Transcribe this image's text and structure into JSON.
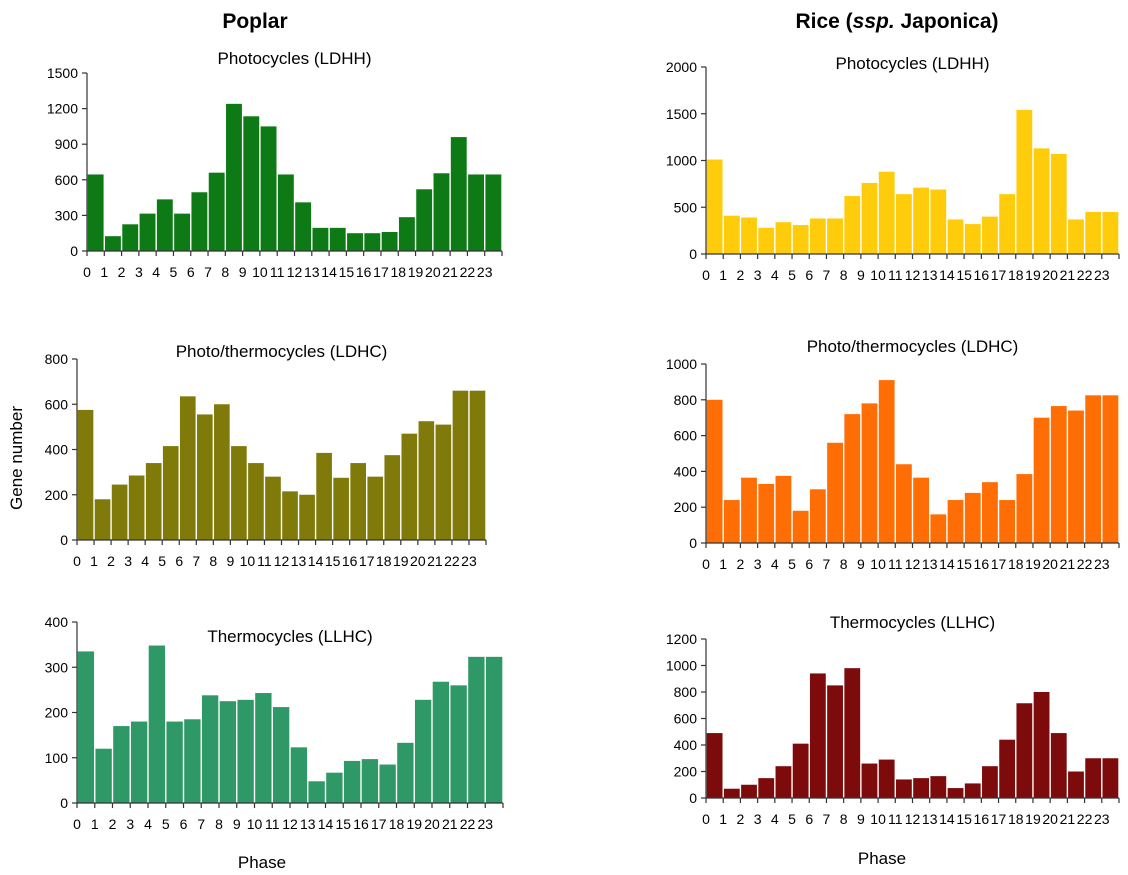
{
  "figure": {
    "columns": [
      {
        "title_main": "Poplar",
        "title_italic": "",
        "title_tail": ""
      },
      {
        "title_main": "Rice (",
        "title_italic": "ssp.",
        "title_tail": " Japonica)"
      }
    ],
    "y_axis_label": "Gene number",
    "x_axis_label": "Phase"
  },
  "chart_data": [
    {
      "type": "bar",
      "panel": "poplar-ldhh",
      "title": "Photocycles (LDHH)",
      "color": "#0d7a16",
      "categories": [
        "0",
        "1",
        "2",
        "3",
        "4",
        "5",
        "6",
        "7",
        "8",
        "9",
        "10",
        "11",
        "12",
        "13",
        "14",
        "15",
        "16",
        "17",
        "18",
        "19",
        "20",
        "21",
        "22",
        "23"
      ],
      "values": [
        645,
        125,
        225,
        315,
        435,
        315,
        495,
        660,
        1240,
        1135,
        1050,
        645,
        410,
        195,
        195,
        150,
        150,
        160,
        285,
        520,
        655,
        960,
        645,
        645
      ],
      "ylim": [
        0,
        1500
      ],
      "yticks": [
        0,
        300,
        600,
        900,
        1200,
        1500
      ],
      "xlabel": "",
      "ylabel": ""
    },
    {
      "type": "bar",
      "panel": "rice-ldhh",
      "title": "Photocycles (LDHH)",
      "color": "#ffcc0c",
      "categories": [
        "0",
        "1",
        "2",
        "3",
        "4",
        "5",
        "6",
        "7",
        "8",
        "9",
        "10",
        "11",
        "12",
        "13",
        "14",
        "15",
        "16",
        "17",
        "18",
        "19",
        "20",
        "21",
        "22",
        "23"
      ],
      "values": [
        1010,
        410,
        390,
        280,
        340,
        310,
        380,
        380,
        620,
        760,
        880,
        640,
        710,
        690,
        370,
        320,
        400,
        640,
        1540,
        1130,
        1070,
        370,
        450,
        450
      ],
      "ylim": [
        0,
        2000
      ],
      "yticks": [
        0,
        500,
        1000,
        1500,
        2000
      ],
      "xlabel": "",
      "ylabel": ""
    },
    {
      "type": "bar",
      "panel": "poplar-ldhc",
      "title": "Photo/thermocycles (LDHC)",
      "color": "#7f7a0a",
      "categories": [
        "0",
        "1",
        "2",
        "3",
        "4",
        "5",
        "6",
        "7",
        "8",
        "9",
        "10",
        "11",
        "12",
        "13",
        "14",
        "15",
        "16",
        "17",
        "18",
        "19",
        "20",
        "21",
        "22",
        "23"
      ],
      "values": [
        575,
        180,
        245,
        285,
        340,
        415,
        635,
        555,
        600,
        415,
        340,
        280,
        215,
        200,
        385,
        275,
        340,
        280,
        375,
        470,
        525,
        510,
        660,
        660
      ],
      "ylim": [
        0,
        800
      ],
      "yticks": [
        0,
        200,
        400,
        600,
        800
      ],
      "xlabel": "",
      "ylabel": "Gene number"
    },
    {
      "type": "bar",
      "panel": "rice-ldhc",
      "title": "Photo/thermocycles (LDHC)",
      "color": "#ff6d05",
      "categories": [
        "0",
        "1",
        "2",
        "3",
        "4",
        "5",
        "6",
        "7",
        "8",
        "9",
        "10",
        "11",
        "12",
        "13",
        "14",
        "15",
        "16",
        "17",
        "18",
        "19",
        "20",
        "21",
        "22",
        "23"
      ],
      "values": [
        800,
        240,
        365,
        330,
        375,
        180,
        300,
        560,
        720,
        780,
        910,
        440,
        365,
        160,
        240,
        280,
        340,
        240,
        385,
        700,
        765,
        740,
        825,
        825
      ],
      "ylim": [
        0,
        1000
      ],
      "yticks": [
        0,
        200,
        400,
        600,
        800,
        1000
      ],
      "xlabel": "",
      "ylabel": ""
    },
    {
      "type": "bar",
      "panel": "poplar-llhc",
      "title": "Thermocycles (LLHC)",
      "color": "#2e9966",
      "categories": [
        "0",
        "1",
        "2",
        "3",
        "4",
        "5",
        "6",
        "7",
        "8",
        "9",
        "10",
        "11",
        "12",
        "13",
        "14",
        "15",
        "16",
        "17",
        "18",
        "19",
        "20",
        "21",
        "22",
        "23"
      ],
      "values": [
        335,
        120,
        170,
        180,
        348,
        180,
        185,
        238,
        225,
        228,
        243,
        212,
        123,
        48,
        67,
        93,
        97,
        85,
        133,
        228,
        268,
        260,
        323,
        323
      ],
      "ylim": [
        0,
        400
      ],
      "yticks": [
        0,
        100,
        200,
        300,
        400
      ],
      "xlabel": "Phase",
      "ylabel": ""
    },
    {
      "type": "bar",
      "panel": "rice-llhc",
      "title": "Thermocycles (LLHC)",
      "color": "#7d0b0b",
      "categories": [
        "0",
        "1",
        "2",
        "3",
        "4",
        "5",
        "6",
        "7",
        "8",
        "9",
        "10",
        "11",
        "12",
        "13",
        "14",
        "15",
        "16",
        "17",
        "18",
        "19",
        "20",
        "21",
        "22",
        "23"
      ],
      "values": [
        490,
        70,
        100,
        150,
        240,
        410,
        940,
        850,
        980,
        260,
        290,
        140,
        150,
        165,
        75,
        110,
        240,
        440,
        715,
        800,
        490,
        200,
        300,
        300
      ],
      "ylim": [
        0,
        1200
      ],
      "yticks": [
        0,
        200,
        400,
        600,
        800,
        1000,
        1200
      ],
      "xlabel": "Phase",
      "ylabel": ""
    }
  ]
}
